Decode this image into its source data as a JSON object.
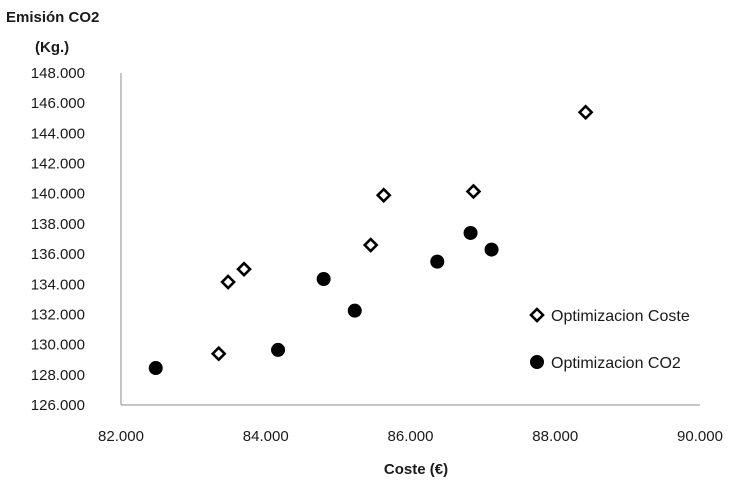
{
  "chart_data": {
    "type": "scatter",
    "title": "",
    "ylabel_lines": [
      "Emisión CO2",
      "(Kg.)"
    ],
    "xlabel": "Coste (€)",
    "xlim": [
      82000,
      90000
    ],
    "ylim": [
      126000,
      148000
    ],
    "xticks": [
      82000,
      84000,
      86000,
      88000,
      90000
    ],
    "yticks": [
      126000,
      128000,
      130000,
      132000,
      134000,
      136000,
      138000,
      140000,
      142000,
      144000,
      146000,
      148000
    ],
    "xtick_labels": [
      "82.000",
      "84.000",
      "86.000",
      "88.000",
      "90.000"
    ],
    "ytick_labels": [
      "126.000",
      "128.000",
      "130.000",
      "132.000",
      "134.000",
      "136.000",
      "138.000",
      "140.000",
      "142.000",
      "144.000",
      "146.000",
      "148.000"
    ],
    "grid": false,
    "legend_position": "right",
    "series": [
      {
        "name": "Optimizacion Coste",
        "marker": "diamond-open",
        "color": "#000000",
        "points": [
          {
            "x": 83350,
            "y": 129400
          },
          {
            "x": 83480,
            "y": 134150
          },
          {
            "x": 83700,
            "y": 135000
          },
          {
            "x": 85450,
            "y": 136600
          },
          {
            "x": 85630,
            "y": 139900
          },
          {
            "x": 86870,
            "y": 140150
          },
          {
            "x": 88420,
            "y": 145400
          }
        ]
      },
      {
        "name": "Optimizacion CO2",
        "marker": "circle-filled",
        "color": "#000000",
        "points": [
          {
            "x": 82480,
            "y": 128450
          },
          {
            "x": 84170,
            "y": 129650
          },
          {
            "x": 84800,
            "y": 134350
          },
          {
            "x": 85230,
            "y": 132250
          },
          {
            "x": 86370,
            "y": 135500
          },
          {
            "x": 86830,
            "y": 137400
          },
          {
            "x": 87120,
            "y": 136300
          }
        ]
      }
    ]
  }
}
